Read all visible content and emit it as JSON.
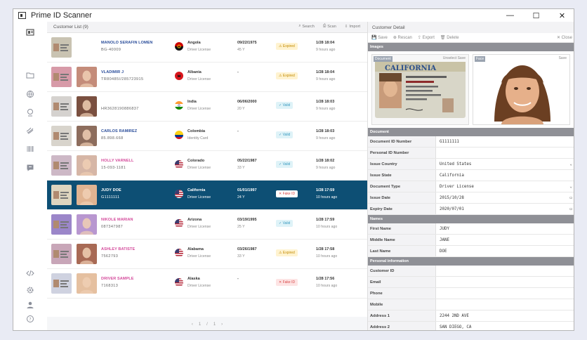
{
  "app": {
    "title": "Prime ID Scanner",
    "minimize": "—",
    "maximize": "☐",
    "close": "✕"
  },
  "list": {
    "title": "Customer List (9)",
    "actions": {
      "search": "Search",
      "scan": "Scan",
      "import": "Import"
    },
    "rows": [
      {
        "name": "MANOLO SERAFIN LOMEN",
        "number": "BG-40009",
        "country": "Angola",
        "doc_type": "Driver License",
        "dob": "09/22/1975",
        "age": "45 Y",
        "status": "Expired",
        "status_kind": "expired",
        "date": "1/28 18:04",
        "ago": "9 hours ago",
        "name_color": "blue",
        "flag": "angola"
      },
      {
        "name": "VLADIMIR J",
        "number": "TR80485I/285723915",
        "country": "Albania",
        "doc_type": "Driver License",
        "dob": "-",
        "age": "",
        "status": "Expired",
        "status_kind": "expired",
        "date": "1/28 18:04",
        "ago": "9 hours ago",
        "name_color": "blue",
        "flag": "albania"
      },
      {
        "name": "",
        "number": "HR3628190886837",
        "country": "India",
        "doc_type": "Driver License",
        "dob": "06/06/2000",
        "age": "20 Y",
        "status": "Valid",
        "status_kind": "valid",
        "date": "1/28 18:03",
        "ago": "9 hours ago",
        "name_color": "blue",
        "flag": "india"
      },
      {
        "name": "CARLOS RAMIREZ",
        "number": "85.898.668",
        "country": "Colombia",
        "doc_type": "Identity Card",
        "dob": "-",
        "age": "",
        "status": "Valid",
        "status_kind": "valid",
        "date": "1/28 18:03",
        "ago": "9 hours ago",
        "name_color": "blue",
        "flag": "colombia"
      },
      {
        "name": "HOLLY VARNELL",
        "number": "15-093-1181",
        "country": "Colorado",
        "doc_type": "Driver License",
        "dob": "05/22/1987",
        "age": "33 Y",
        "status": "Valid",
        "status_kind": "valid",
        "date": "1/28 18:02",
        "ago": "9 hours ago",
        "name_color": "pink",
        "flag": "usa"
      },
      {
        "name": "JUDY DOE",
        "number": "G1111111",
        "country": "California",
        "doc_type": "Driver License",
        "dob": "01/01/1997",
        "age": "24 Y",
        "status": "Fake ID",
        "status_kind": "fake",
        "date": "1/28 17:59",
        "ago": "10 hours ago",
        "name_color": "pink",
        "flag": "usa",
        "selected": true
      },
      {
        "name": "NIKOLE MARIAN",
        "number": "087347987",
        "country": "Arizona",
        "doc_type": "Driver License",
        "dob": "03/19/1995",
        "age": "25 Y",
        "status": "Valid",
        "status_kind": "valid",
        "date": "1/28 17:59",
        "ago": "10 hours ago",
        "name_color": "pink",
        "flag": "usa"
      },
      {
        "name": "ASHLEY BATISTE",
        "number": "7562793",
        "country": "Alabama",
        "doc_type": "Driver License",
        "dob": "03/26/1987",
        "age": "33 Y",
        "status": "Expired",
        "status_kind": "expired",
        "date": "1/28 17:58",
        "ago": "10 hours ago",
        "name_color": "pink",
        "flag": "usa"
      },
      {
        "name": "DRIVER SAMPLE",
        "number": "7168313",
        "country": "Alaska",
        "doc_type": "Driver License",
        "dob": "-",
        "age": "",
        "status": "Fake ID",
        "status_kind": "fake",
        "date": "1/28 17:56",
        "ago": "10 hours ago",
        "name_color": "pink",
        "flag": "usa"
      }
    ],
    "pager": {
      "prev": "‹",
      "current": "1",
      "sep": "/",
      "total": "1",
      "next": "›"
    }
  },
  "detail": {
    "title": "Customer Detail",
    "toolbar": {
      "save": "Save",
      "rescan": "Rescan",
      "export": "Export",
      "delete": "Delete",
      "close": "Close"
    },
    "sections": {
      "images": "Images",
      "document": "Document",
      "names": "Names",
      "personal": "Personal information"
    },
    "images": {
      "front_label": "Document",
      "face_label": "Face",
      "front_actions": "Unselect  Save",
      "face_action": "Save",
      "card_title": "CALIFORNIA"
    },
    "document_fields": [
      {
        "label": "Document ID Number",
        "value": "G1111111"
      },
      {
        "label": "Personal ID Number",
        "value": ""
      },
      {
        "label": "Issue Country",
        "value": "United States",
        "dropdown": true
      },
      {
        "label": "Issue State",
        "value": "California"
      },
      {
        "label": "Document Type",
        "value": "Driver License",
        "dropdown": true
      },
      {
        "label": "Issue Date",
        "value": "2015/10/28",
        "calendar": true
      },
      {
        "label": "Expiry Date",
        "value": "2020/07/01",
        "calendar": true
      }
    ],
    "name_fields": [
      {
        "label": "First Name",
        "value": "JUDY"
      },
      {
        "label": "Middle Name",
        "value": "JANE"
      },
      {
        "label": "Last Name",
        "value": "DOE"
      }
    ],
    "personal_fields": [
      {
        "label": "Customer ID",
        "value": ""
      },
      {
        "label": "Email",
        "value": ""
      },
      {
        "label": "Phone",
        "value": ""
      },
      {
        "label": "Mobile",
        "value": ""
      },
      {
        "label": "Address 1",
        "value": "2244 2ND AVE"
      },
      {
        "label": "Address 2",
        "value": "SAN DIEGO, CA"
      }
    ]
  },
  "colors": {
    "selected_row": "#0d4f74",
    "pink_name": "#d44a9b",
    "blue_name": "#2a4d9a",
    "section_header": "#8f9096"
  }
}
